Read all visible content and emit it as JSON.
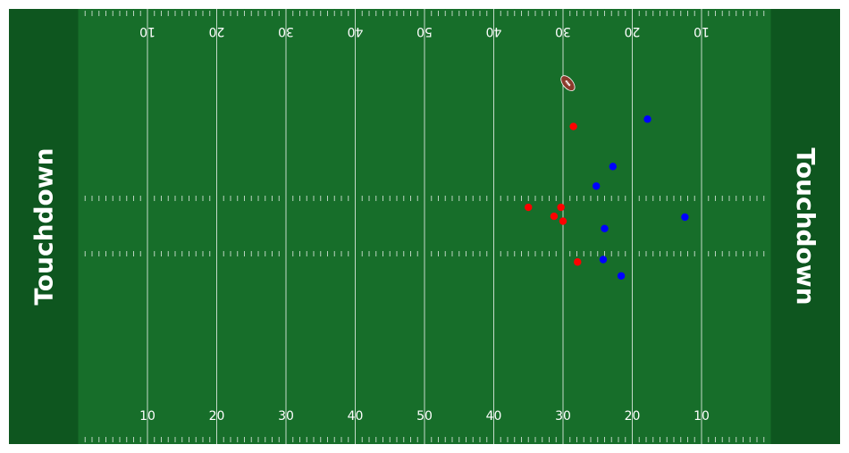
{
  "chart_data": {
    "type": "scatter",
    "title": "",
    "xlabel": "",
    "ylabel": "",
    "xlim": [
      0,
      120
    ],
    "ylim": [
      0,
      53.3
    ],
    "grid": false,
    "endzone_label": "Touchdown",
    "yard_labels": [
      "10",
      "20",
      "30",
      "40",
      "50",
      "40",
      "30",
      "20",
      "10"
    ],
    "yard_label_x": [
      20,
      30,
      40,
      50,
      60,
      70,
      80,
      90,
      100
    ],
    "colors": {
      "field": "#176e2a",
      "endzone": "#0e561f",
      "lines": "#ffffff",
      "team_a": "#ff0000",
      "team_b": "#0000ff",
      "ball": "#8b3a2b"
    },
    "series": [
      {
        "color": "#ff0000",
        "x": [
          81.5,
          75.0,
          79.7,
          78.7,
          80.0,
          82.1
        ],
        "y": [
          38.9,
          29.0,
          29.0,
          27.9,
          27.3,
          22.3
        ]
      },
      {
        "color": "#0000ff",
        "x": [
          92.2,
          87.2,
          84.8,
          97.6,
          86.0,
          85.8,
          88.4
        ],
        "y": [
          39.8,
          34.0,
          31.6,
          27.8,
          26.4,
          22.6,
          20.6
        ]
      }
    ],
    "ball": {
      "x": 80.7,
      "y": 44.2,
      "icon": "football-icon"
    }
  }
}
